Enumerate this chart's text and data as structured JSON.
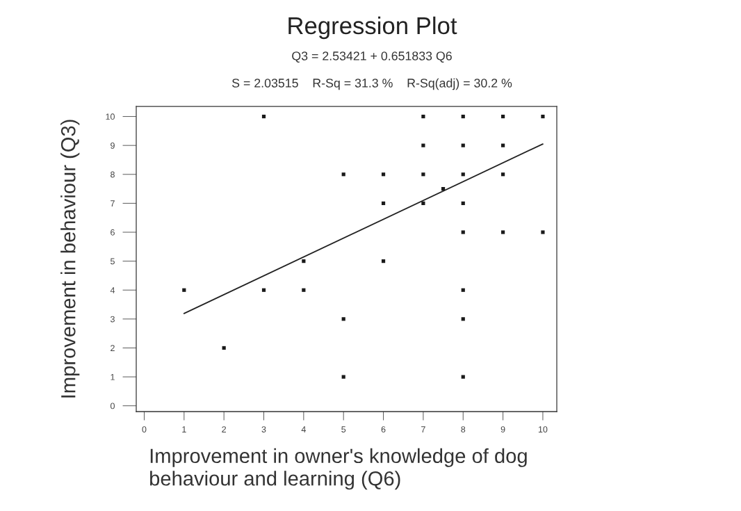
{
  "chart_data": {
    "type": "scatter",
    "title": "Regression Plot",
    "subtitle": "Q3 = 2.53421 + 0.651833 Q6",
    "annotations": [
      "S = 2.03515    R-Sq = 31.3 %    R-Sq(adj) = 30.2 %"
    ],
    "xlabel": "Improvement in owner's knowledge of dog\nbehaviour and learning (Q6)",
    "ylabel": "Improvement in behaviour (Q3)",
    "series": [
      {
        "color": "#1a1a1a",
        "marker": "square",
        "x": [
          1,
          2,
          3,
          3,
          4,
          4,
          5,
          5,
          5,
          6,
          6,
          6,
          7,
          7,
          7,
          7,
          7.5,
          8,
          8,
          8,
          8,
          8,
          8,
          8,
          8,
          9,
          9,
          9,
          9,
          10,
          10
        ],
        "values": [
          4,
          2,
          10,
          4,
          5,
          4,
          8,
          3,
          1,
          8,
          7,
          5,
          10,
          9,
          8,
          7,
          7.5,
          10,
          9,
          8,
          7,
          6,
          4,
          3,
          1,
          10,
          9,
          8,
          6,
          10,
          6
        ]
      },
      {
        "type": "line",
        "color": "#222222",
        "line_style": "solid",
        "x": [
          1,
          10
        ],
        "values": [
          3.19,
          9.05
        ]
      }
    ],
    "xlim": [
      -0.2,
      10.35
    ],
    "ylim": [
      -0.2,
      10.35
    ],
    "xticks": [
      0,
      1,
      2,
      3,
      4,
      5,
      6,
      7,
      8,
      9,
      10
    ],
    "yticks": [
      0,
      1,
      2,
      3,
      4,
      5,
      6,
      7,
      8,
      9,
      10
    ]
  }
}
